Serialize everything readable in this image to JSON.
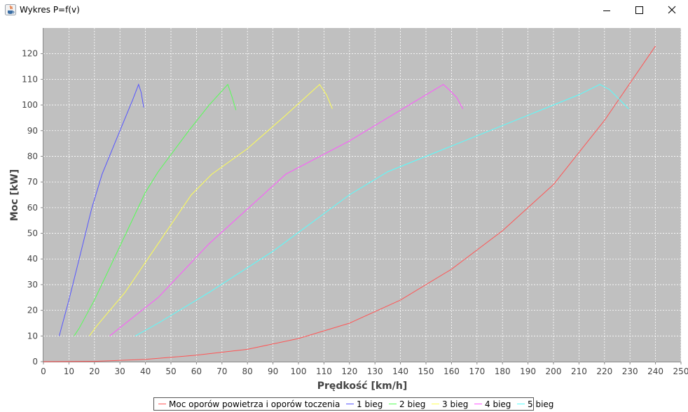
{
  "window": {
    "title": "Wykres P=f(v)",
    "icon": "java-icon",
    "controls": [
      "minimize-icon",
      "maximize-icon",
      "close-icon"
    ]
  },
  "colors": {
    "plot_background": "#c0c0c0",
    "gridline": "#ffffff"
  },
  "chart_data": {
    "type": "line",
    "xlabel": "Prędkość [km/h]",
    "ylabel": "Moc [kW]",
    "xlim": [
      0,
      250
    ],
    "ylim": [
      0,
      130
    ],
    "x_ticks": [
      "0",
      "10",
      "20",
      "30",
      "40",
      "50",
      "60",
      "70",
      "80",
      "90",
      "100",
      "110",
      "120",
      "130",
      "140",
      "150",
      "160",
      "170",
      "180",
      "190",
      "200",
      "210",
      "220",
      "230",
      "240",
      "250"
    ],
    "y_ticks": [
      "0",
      "10",
      "20",
      "30",
      "40",
      "50",
      "60",
      "70",
      "80",
      "90",
      "100",
      "110",
      "120"
    ],
    "grid": true,
    "legend_position": "bottom",
    "series": [
      {
        "name": "Moc oporów powietrza i oporów toczenia",
        "color": "#ff5555",
        "x": [
          0,
          20,
          40,
          60,
          80,
          100,
          120,
          140,
          160,
          180,
          200,
          220,
          240
        ],
        "y": [
          0,
          0.1,
          0.9,
          2.5,
          4.8,
          9,
          15,
          24,
          36,
          51,
          69,
          94,
          123
        ]
      },
      {
        "name": "1 bieg",
        "color": "#5555ff",
        "x": [
          6.2,
          7,
          10,
          14,
          19,
          23,
          30,
          35,
          37.3,
          38.3,
          39.3
        ],
        "y": [
          10,
          13,
          24,
          40,
          60,
          73,
          90,
          102,
          108,
          105,
          99
        ]
      },
      {
        "name": "2 bieg",
        "color": "#55ff55",
        "x": [
          12,
          14,
          20,
          30,
          40,
          45,
          57,
          65,
          72.3,
          74,
          75.5
        ],
        "y": [
          10,
          13,
          24,
          45,
          66,
          74,
          90,
          100,
          108,
          103,
          98
        ]
      },
      {
        "name": "3 bieg",
        "color": "#ffff55",
        "x": [
          18,
          21,
          32,
          45,
          58,
          66,
          80,
          95,
          108.3,
          111,
          113.3
        ],
        "y": [
          10,
          14,
          27,
          46,
          65,
          73,
          83,
          96,
          108,
          104,
          98.5
        ]
      },
      {
        "name": "4 bieg",
        "color": "#ff55ff",
        "x": [
          26,
          31,
          45,
          65,
          85,
          95,
          120,
          140,
          156.8,
          159,
          162,
          164.5
        ],
        "y": [
          10,
          14,
          25,
          46,
          64,
          73,
          86,
          98,
          108,
          106,
          103,
          98.5
        ]
      },
      {
        "name": "5 bieg",
        "color": "#55ffff",
        "x": [
          36,
          45,
          65,
          90,
          120,
          135,
          160,
          190,
          210,
          218.2,
          222,
          227,
          229.5
        ],
        "y": [
          10,
          15,
          27,
          43,
          65,
          74,
          84,
          96,
          104,
          108,
          106,
          101,
          98.5
        ]
      }
    ]
  }
}
